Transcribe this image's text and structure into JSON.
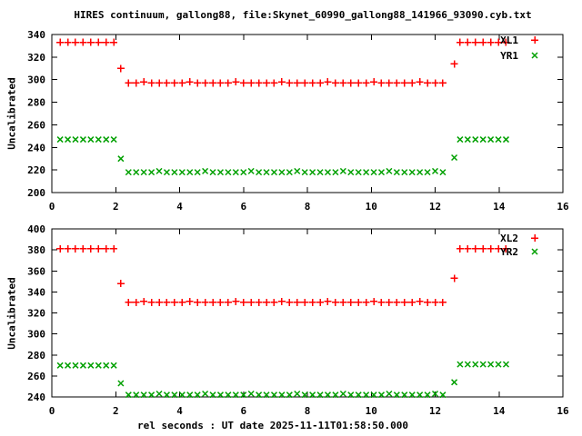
{
  "window": {
    "background": "#ffffff"
  },
  "chart_data": {
    "type": "scatter",
    "title": "HIRES continuum, gallong88, file:Skynet_60990_gallong88_141966_93090.cyb.txt",
    "xlabel": "rel seconds : UT date 2025-11-11T01:58:50.000",
    "grid": false,
    "marker_colors": {
      "red": "#ff0000",
      "green": "#00a000"
    },
    "panels": [
      {
        "ylabel": "Uncalibrated",
        "xlim": [
          0,
          16
        ],
        "ylim": [
          200,
          340
        ],
        "xticks": [
          0,
          2,
          4,
          6,
          8,
          10,
          12,
          14,
          16
        ],
        "yticks": [
          200,
          220,
          240,
          260,
          280,
          300,
          320,
          340
        ],
        "legend_position": "top-right-inside",
        "series": [
          {
            "name": "XL1",
            "marker": "plus",
            "color": "#ff0000",
            "x": [
              0.26,
              0.5,
              0.74,
              0.98,
              1.22,
              1.46,
              1.7,
              1.94,
              2.16,
              2.4,
              2.64,
              2.88,
              3.12,
              3.36,
              3.6,
              3.84,
              4.08,
              4.32,
              4.56,
              4.8,
              5.04,
              5.28,
              5.52,
              5.76,
              6,
              6.24,
              6.48,
              6.72,
              6.96,
              7.2,
              7.44,
              7.68,
              7.92,
              8.16,
              8.4,
              8.64,
              8.88,
              9.12,
              9.36,
              9.6,
              9.84,
              10.08,
              10.32,
              10.56,
              10.8,
              11.04,
              11.28,
              11.52,
              11.76,
              12,
              12.24,
              12.6,
              12.78,
              13.02,
              13.26,
              13.5,
              13.74,
              13.98,
              14.22
            ],
            "y": [
              333,
              333,
              333,
              333,
              333,
              333,
              333,
              333,
              310,
              297,
              297,
              298,
              297,
              297,
              297,
              297,
              297,
              298,
              297,
              297,
              297,
              297,
              297,
              298,
              297,
              297,
              297,
              297,
              297,
              298,
              297,
              297,
              297,
              297,
              297,
              298,
              297,
              297,
              297,
              297,
              297,
              298,
              297,
              297,
              297,
              297,
              297,
              298,
              297,
              297,
              297,
              314,
              333,
              333,
              333,
              333,
              333,
              333,
              333
            ]
          },
          {
            "name": "YR1",
            "marker": "cross",
            "color": "#00a000",
            "x": [
              0.26,
              0.5,
              0.74,
              0.98,
              1.22,
              1.46,
              1.7,
              1.94,
              2.16,
              2.4,
              2.64,
              2.88,
              3.12,
              3.36,
              3.6,
              3.84,
              4.08,
              4.32,
              4.56,
              4.8,
              5.04,
              5.28,
              5.52,
              5.76,
              6,
              6.24,
              6.48,
              6.72,
              6.96,
              7.2,
              7.44,
              7.68,
              7.92,
              8.16,
              8.4,
              8.64,
              8.88,
              9.12,
              9.36,
              9.6,
              9.84,
              10.08,
              10.32,
              10.56,
              10.8,
              11.04,
              11.28,
              11.52,
              11.76,
              12,
              12.24,
              12.6,
              12.78,
              13.02,
              13.26,
              13.5,
              13.74,
              13.98,
              14.22
            ],
            "y": [
              247,
              247,
              247,
              247,
              247,
              247,
              247,
              247,
              230,
              218,
              218,
              218,
              218,
              219,
              218,
              218,
              218,
              218,
              218,
              219,
              218,
              218,
              218,
              218,
              218,
              219,
              218,
              218,
              218,
              218,
              218,
              219,
              218,
              218,
              218,
              218,
              218,
              219,
              218,
              218,
              218,
              218,
              218,
              219,
              218,
              218,
              218,
              218,
              218,
              219,
              218,
              231,
              247,
              247,
              247,
              247,
              247,
              247,
              247
            ]
          }
        ]
      },
      {
        "ylabel": "Uncalibrated",
        "xlim": [
          0,
          16
        ],
        "ylim": [
          240,
          400
        ],
        "xticks": [
          0,
          2,
          4,
          6,
          8,
          10,
          12,
          14,
          16
        ],
        "yticks": [
          240,
          260,
          280,
          300,
          320,
          340,
          360,
          380,
          400
        ],
        "legend_position": "top-right-inside",
        "series": [
          {
            "name": "XL2",
            "marker": "plus",
            "color": "#ff0000",
            "x": [
              0.26,
              0.5,
              0.74,
              0.98,
              1.22,
              1.46,
              1.7,
              1.94,
              2.16,
              2.4,
              2.64,
              2.88,
              3.12,
              3.36,
              3.6,
              3.84,
              4.08,
              4.32,
              4.56,
              4.8,
              5.04,
              5.28,
              5.52,
              5.76,
              6,
              6.24,
              6.48,
              6.72,
              6.96,
              7.2,
              7.44,
              7.68,
              7.92,
              8.16,
              8.4,
              8.64,
              8.88,
              9.12,
              9.36,
              9.6,
              9.84,
              10.08,
              10.32,
              10.56,
              10.8,
              11.04,
              11.28,
              11.52,
              11.76,
              12,
              12.24,
              12.6,
              12.78,
              13.02,
              13.26,
              13.5,
              13.74,
              13.98,
              14.22
            ],
            "y": [
              381,
              381,
              381,
              381,
              381,
              381,
              381,
              381,
              348,
              330,
              330,
              331,
              330,
              330,
              330,
              330,
              330,
              331,
              330,
              330,
              330,
              330,
              330,
              331,
              330,
              330,
              330,
              330,
              330,
              331,
              330,
              330,
              330,
              330,
              330,
              331,
              330,
              330,
              330,
              330,
              330,
              331,
              330,
              330,
              330,
              330,
              330,
              331,
              330,
              330,
              330,
              353,
              381,
              381,
              381,
              381,
              381,
              381,
              381
            ]
          },
          {
            "name": "YR2",
            "marker": "cross",
            "color": "#00a000",
            "x": [
              0.26,
              0.5,
              0.74,
              0.98,
              1.22,
              1.46,
              1.7,
              1.94,
              2.16,
              2.4,
              2.64,
              2.88,
              3.12,
              3.36,
              3.6,
              3.84,
              4.08,
              4.32,
              4.56,
              4.8,
              5.04,
              5.28,
              5.52,
              5.76,
              6,
              6.24,
              6.48,
              6.72,
              6.96,
              7.2,
              7.44,
              7.68,
              7.92,
              8.16,
              8.4,
              8.64,
              8.88,
              9.12,
              9.36,
              9.6,
              9.84,
              10.08,
              10.32,
              10.56,
              10.8,
              11.04,
              11.28,
              11.52,
              11.76,
              12,
              12.24,
              12.6,
              12.78,
              13.02,
              13.26,
              13.5,
              13.74,
              13.98,
              14.22
            ],
            "y": [
              270,
              270,
              270,
              270,
              270,
              270,
              270,
              270,
              253,
              242,
              242,
              242,
              242,
              243,
              242,
              242,
              242,
              242,
              242,
              243,
              242,
              242,
              242,
              242,
              242,
              243,
              242,
              242,
              242,
              242,
              242,
              243,
              242,
              242,
              242,
              242,
              242,
              243,
              242,
              242,
              242,
              242,
              242,
              243,
              242,
              242,
              242,
              242,
              242,
              243,
              242,
              254,
              271,
              271,
              271,
              271,
              271,
              271,
              271
            ]
          }
        ]
      }
    ]
  }
}
